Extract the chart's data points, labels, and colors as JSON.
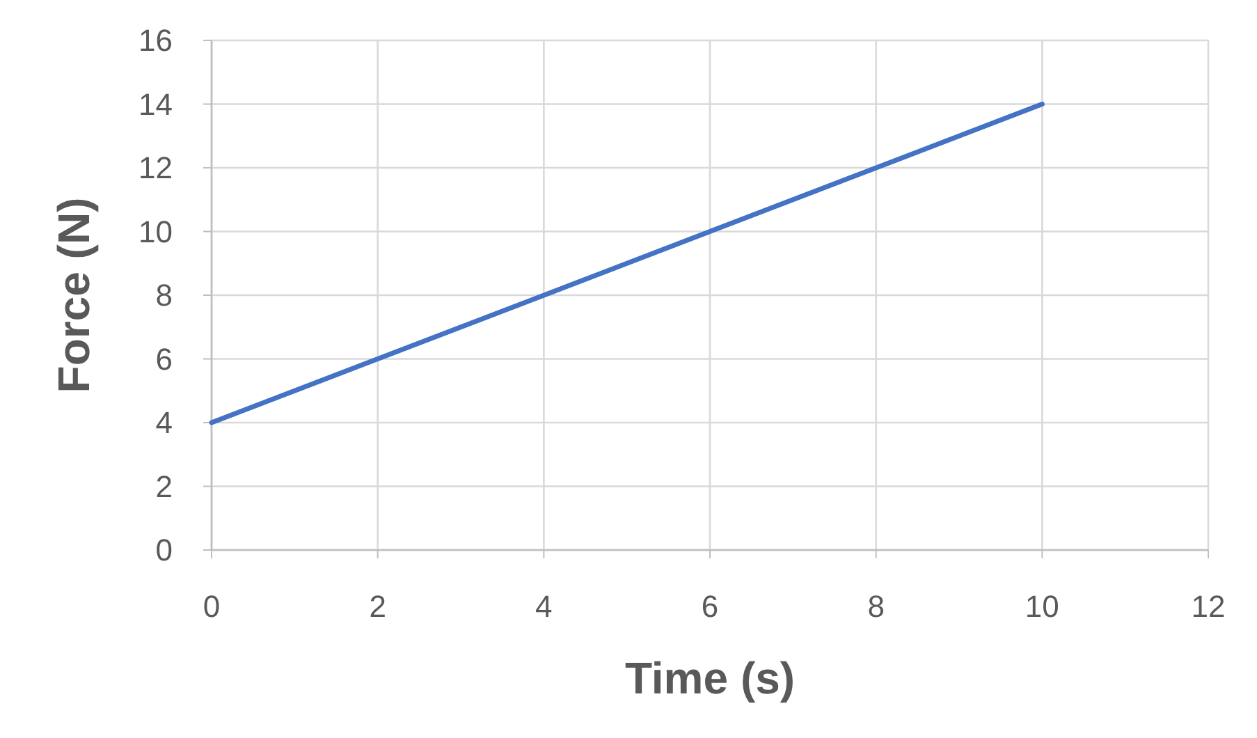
{
  "chart_data": {
    "type": "line",
    "xlabel": "Time (s)",
    "ylabel": "Force (N)",
    "x": [
      0,
      10
    ],
    "series": [
      {
        "color": "#4472c4",
        "values": [
          4,
          14
        ]
      }
    ],
    "xlim": [
      0,
      12
    ],
    "xticks": [
      0,
      2,
      4,
      6,
      8,
      10,
      12
    ],
    "ylim": [
      0,
      16
    ],
    "yticks": [
      0,
      2,
      4,
      6,
      8,
      10,
      12,
      14,
      16
    ],
    "grid": true,
    "marker": "none",
    "line_style": "solid"
  }
}
